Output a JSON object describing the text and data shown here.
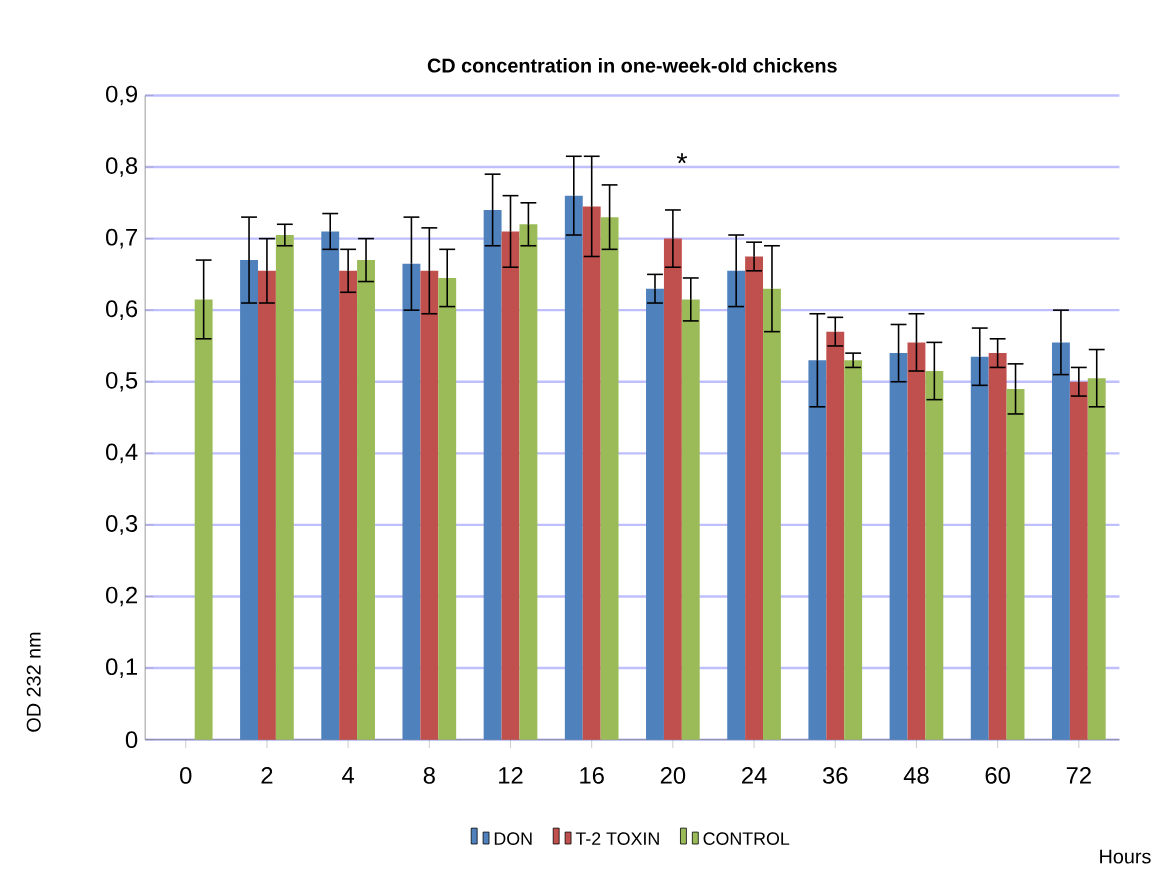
{
  "chart_data": {
    "type": "bar",
    "title": "CD concentration in one-week-old chickens",
    "xlabel": "Hours",
    "ylabel": "OD 232 nm",
    "categories": [
      "0",
      "2",
      "4",
      "8",
      "12",
      "16",
      "20",
      "24",
      "36",
      "48",
      "60",
      "72"
    ],
    "series": [
      {
        "name": "DON",
        "color": "#4f81bd",
        "values": [
          null,
          0.67,
          0.71,
          0.665,
          0.74,
          0.76,
          0.63,
          0.655,
          0.53,
          0.54,
          0.535,
          0.555
        ],
        "errors": [
          null,
          0.06,
          0.025,
          0.065,
          0.05,
          0.055,
          0.02,
          0.05,
          0.065,
          0.04,
          0.04,
          0.045
        ]
      },
      {
        "name": "T-2 TOXIN",
        "color": "#c0504d",
        "values": [
          null,
          0.655,
          0.655,
          0.655,
          0.71,
          0.745,
          0.7,
          0.675,
          0.57,
          0.555,
          0.54,
          0.5
        ],
        "errors": [
          null,
          0.045,
          0.03,
          0.06,
          0.05,
          0.07,
          0.04,
          0.02,
          0.02,
          0.04,
          0.02,
          0.02
        ]
      },
      {
        "name": "CONTROL",
        "color": "#9bbb59",
        "values": [
          0.615,
          0.705,
          0.67,
          0.645,
          0.72,
          0.73,
          0.615,
          0.63,
          0.53,
          0.515,
          0.49,
          0.505
        ],
        "errors": [
          0.055,
          0.015,
          0.03,
          0.04,
          0.03,
          0.045,
          0.03,
          0.06,
          0.01,
          0.04,
          0.035,
          0.04
        ]
      }
    ],
    "ylim": [
      0,
      0.9
    ],
    "yticks": [
      0,
      {
        "value": 0.1,
        "label": "0,1"
      },
      {
        "value": 0.2,
        "label": "0,2"
      },
      {
        "value": 0.3,
        "label": "0,3"
      },
      {
        "value": 0.4,
        "label": "0,4"
      },
      {
        "value": 0.5,
        "label": "0,5"
      },
      {
        "value": 0.6,
        "label": "0,6"
      },
      {
        "value": 0.7,
        "label": "0,7"
      },
      {
        "value": 0.8,
        "label": "0,8"
      },
      {
        "value": 0.9,
        "label": "0,9"
      }
    ],
    "grid": "y",
    "legend": "bottom",
    "annotations": [
      "*"
    ]
  }
}
